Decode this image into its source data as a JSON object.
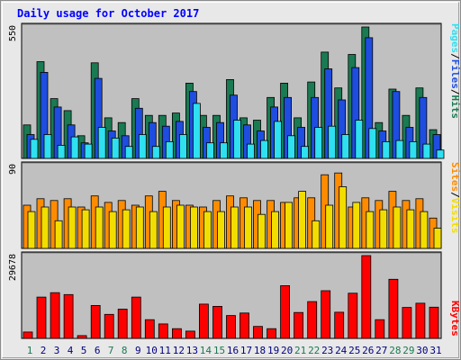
{
  "title": "Daily usage for October 2017",
  "colors": {
    "title": "#0000ff",
    "page_bg": "#e8e8e8",
    "plot_bg": "#c0c0c0",
    "hits": "#1a7a52",
    "files": "#1e4de0",
    "pages": "#2ee0f0",
    "visits": "#f2dd00",
    "sites": "#ff8c00",
    "kbytes": "#ff0000",
    "weekend_label": "#1a7a52",
    "weekday_label": "#000080"
  },
  "legends": {
    "top": [
      "Pages",
      "/",
      "Files",
      "/",
      "Hits"
    ],
    "middle": [
      "Sites",
      "/",
      "Visits"
    ],
    "bottom": [
      "KBytes"
    ]
  },
  "chart_data": [
    {
      "type": "bar",
      "panel": "hits-files-pages",
      "ymax_label": "550",
      "ylim": [
        0,
        550
      ],
      "categories": [
        "1",
        "2",
        "3",
        "4",
        "5",
        "6",
        "7",
        "8",
        "9",
        "10",
        "11",
        "12",
        "13",
        "14",
        "15",
        "16",
        "17",
        "18",
        "19",
        "20",
        "21",
        "22",
        "23",
        "24",
        "25",
        "26",
        "27",
        "28",
        "29",
        "30",
        "31"
      ],
      "series": [
        {
          "name": "Hits",
          "values": [
            140,
            405,
            250,
            200,
            95,
            400,
            170,
            150,
            250,
            180,
            180,
            190,
            315,
            180,
            180,
            330,
            170,
            160,
            255,
            315,
            170,
            320,
            445,
            295,
            435,
            550,
            150,
            290,
            180,
            295,
            120
          ]
        },
        {
          "name": "Files",
          "values": [
            100,
            360,
            215,
            140,
            65,
            335,
            115,
            95,
            210,
            150,
            135,
            155,
            280,
            130,
            150,
            265,
            140,
            115,
            215,
            255,
            130,
            255,
            375,
            245,
            380,
            505,
            115,
            280,
            130,
            255,
            100
          ]
        },
        {
          "name": "Pages",
          "values": [
            80,
            100,
            55,
            90,
            60,
            130,
            85,
            50,
            100,
            50,
            70,
            100,
            230,
            65,
            65,
            160,
            60,
            75,
            155,
            95,
            50,
            130,
            135,
            100,
            160,
            125,
            70,
            75,
            70,
            60,
            35
          ]
        }
      ]
    },
    {
      "type": "bar",
      "panel": "visits-sites",
      "ymax_label": "90",
      "ylim": [
        0,
        90
      ],
      "categories": [
        "1",
        "2",
        "3",
        "4",
        "5",
        "6",
        "7",
        "8",
        "9",
        "10",
        "11",
        "12",
        "13",
        "14",
        "15",
        "16",
        "17",
        "18",
        "19",
        "20",
        "21",
        "22",
        "23",
        "24",
        "25",
        "26",
        "27",
        "28",
        "29",
        "30",
        "31"
      ],
      "series": [
        {
          "name": "Sites",
          "values": [
            47,
            54,
            52,
            54,
            45,
            57,
            50,
            52,
            47,
            57,
            62,
            52,
            47,
            45,
            52,
            57,
            55,
            52,
            52,
            50,
            55,
            55,
            80,
            82,
            45,
            55,
            52,
            62,
            52,
            54,
            33
          ]
        },
        {
          "name": "Visits",
          "values": [
            40,
            45,
            30,
            45,
            42,
            45,
            40,
            42,
            45,
            40,
            45,
            47,
            45,
            40,
            40,
            45,
            45,
            37,
            40,
            50,
            62,
            30,
            47,
            67,
            50,
            40,
            42,
            45,
            42,
            40,
            22
          ]
        }
      ]
    },
    {
      "type": "bar",
      "panel": "kbytes",
      "ymax_label": "29678",
      "ylim": [
        0,
        29678
      ],
      "categories": [
        "1",
        "2",
        "3",
        "4",
        "5",
        "6",
        "7",
        "8",
        "9",
        "10",
        "11",
        "12",
        "13",
        "14",
        "15",
        "16",
        "17",
        "18",
        "19",
        "20",
        "21",
        "22",
        "23",
        "24",
        "25",
        "26",
        "27",
        "28",
        "29",
        "30",
        "31"
      ],
      "series": [
        {
          "name": "KBytes",
          "values": [
            2300,
            14800,
            16400,
            15700,
            1000,
            11800,
            8600,
            10500,
            14800,
            6700,
            5200,
            3500,
            2600,
            12300,
            11500,
            8200,
            9100,
            4300,
            3500,
            18900,
            9300,
            13200,
            17100,
            9400,
            16200,
            29678,
            6700,
            21200,
            11100,
            12600,
            11200
          ]
        }
      ]
    }
  ],
  "weekend_days": [
    1,
    7,
    8,
    14,
    15,
    21,
    22,
    28,
    29
  ]
}
